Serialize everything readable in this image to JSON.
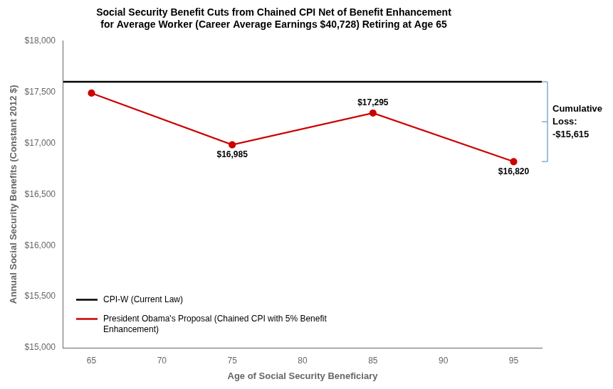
{
  "chart_data": {
    "type": "line",
    "title": "Social Security Benefit Cuts from Chained CPI Net of Benefit Enhancement\nfor Average Worker (Career Average Earnings $40,728) Retiring at Age 65",
    "x_label": "Age of Social Security Beneficiary",
    "y_label": "Annual Social Security Benefits (Constant 2012 $)",
    "series": [
      {
        "name": "CPI-W (Current Law)",
        "type": "hline",
        "color": "#000000",
        "values": [
          17600
        ]
      },
      {
        "name": "President Obama's Proposal (Chained CPI with 5% Benefit\nEnhancement)",
        "color": "#cc0000",
        "marker": "circle",
        "x": [
          65,
          75,
          85,
          95
        ],
        "values": [
          17490,
          16985,
          17295,
          16820
        ],
        "value_labels": [
          null,
          "$16,985",
          "$17,295",
          "$16,820"
        ]
      }
    ],
    "data_labels": true,
    "xlim": [
      63,
      97
    ],
    "xticks": [
      65,
      70,
      75,
      80,
      85,
      90,
      95
    ],
    "ylim": [
      15000,
      18000
    ],
    "yticks": [
      {
        "value": 15000,
        "label": "$15,000"
      },
      {
        "value": 15500,
        "label": "$15,500"
      },
      {
        "value": 16000,
        "label": "$16,000"
      },
      {
        "value": 16500,
        "label": "$16,500"
      },
      {
        "value": 17000,
        "label": "$17,000"
      },
      {
        "value": 17500,
        "label": "$17,500"
      },
      {
        "value": 18000,
        "label": "$18,000"
      }
    ],
    "grid": false,
    "legend": "lower left",
    "annotations": [
      {
        "text": "Cumulative\nLoss:\n-$15,615",
        "color": "#7bafd4"
      }
    ]
  }
}
